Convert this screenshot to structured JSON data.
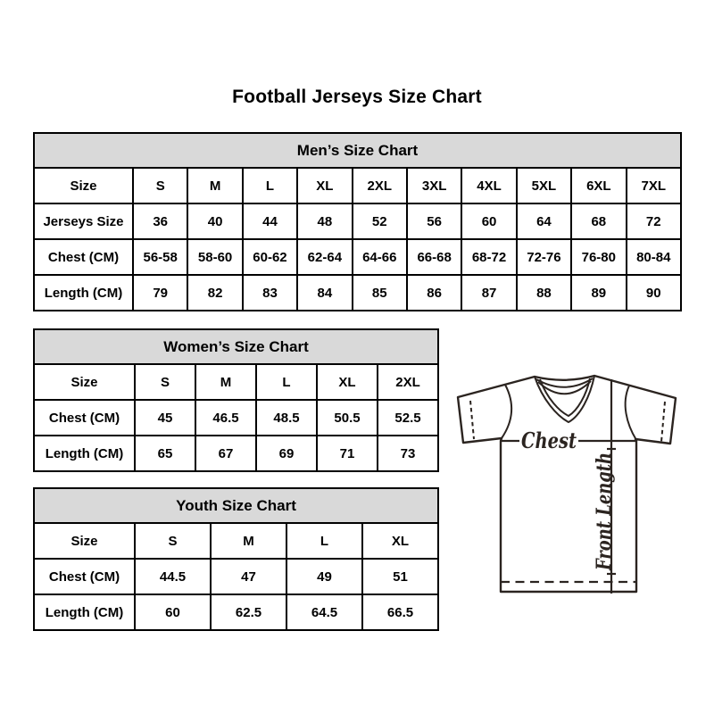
{
  "title": "Football Jerseys Size Chart",
  "colors": {
    "table_header_bg": "#d9d9d9",
    "table_border": "#000000",
    "text": "#000000",
    "sketch_line": "#2b2420"
  },
  "mens_chart": {
    "title": "Men’s Size Chart",
    "row_labels": [
      "Size",
      "Jerseys Size",
      "Chest (CM)",
      "Length (CM)"
    ],
    "rows": [
      [
        "S",
        "M",
        "L",
        "XL",
        "2XL",
        "3XL",
        "4XL",
        "5XL",
        "6XL",
        "7XL"
      ],
      [
        "36",
        "40",
        "44",
        "48",
        "52",
        "56",
        "60",
        "64",
        "68",
        "72"
      ],
      [
        "56-58",
        "58-60",
        "60-62",
        "62-64",
        "64-66",
        "66-68",
        "68-72",
        "72-76",
        "76-80",
        "80-84"
      ],
      [
        "79",
        "82",
        "83",
        "84",
        "85",
        "86",
        "87",
        "88",
        "89",
        "90"
      ]
    ]
  },
  "womens_chart": {
    "title": "Women’s Size Chart",
    "row_labels": [
      "Size",
      "Chest (CM)",
      "Length (CM)"
    ],
    "rows": [
      [
        "S",
        "M",
        "L",
        "XL",
        "2XL"
      ],
      [
        "45",
        "46.5",
        "48.5",
        "50.5",
        "52.5"
      ],
      [
        "65",
        "67",
        "69",
        "71",
        "73"
      ]
    ]
  },
  "youth_chart": {
    "title": "Youth Size Chart",
    "row_labels": [
      "Size",
      "Chest (CM)",
      "Length (CM)"
    ],
    "rows": [
      [
        "S",
        "M",
        "L",
        "XL"
      ],
      [
        "44.5",
        "47",
        "49",
        "51"
      ],
      [
        "60",
        "62.5",
        "64.5",
        "66.5"
      ]
    ]
  },
  "diagram": {
    "chest_label": "Chest",
    "front_length_label": "Front Length"
  }
}
